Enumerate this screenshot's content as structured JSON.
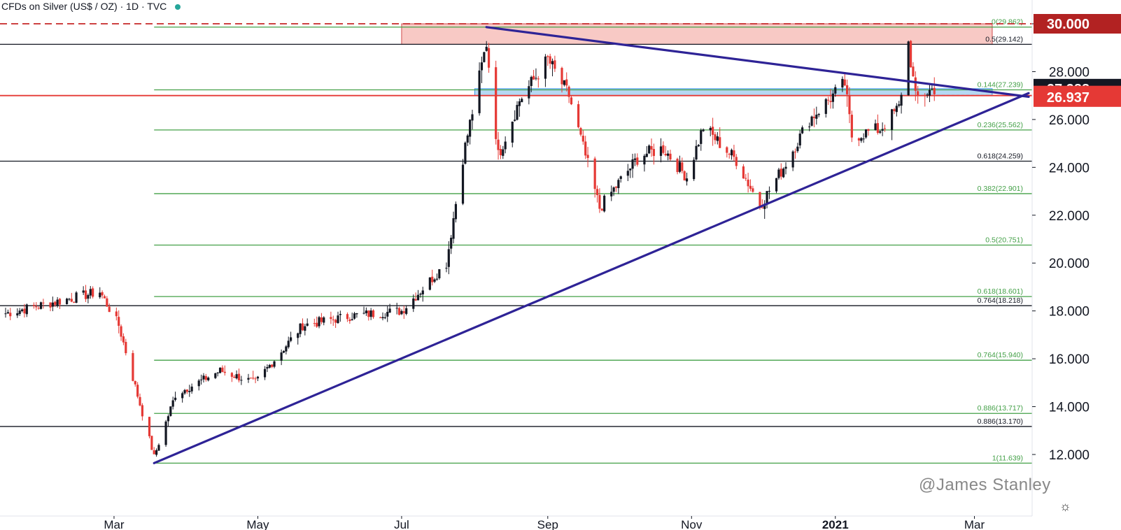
{
  "header": {
    "symbol": "CFDs on Silver (US$ / OZ)",
    "interval": "1D",
    "source": "TVC",
    "separator": "·"
  },
  "watermark": "@James Stanley",
  "chart_data": {
    "type": "candlestick",
    "title": "CFDs on Silver (US$ / OZ) · 1D · TVC",
    "y_axis": {
      "range": [
        11.0,
        31.1
      ],
      "ticks": [
        "12.000",
        "14.000",
        "16.000",
        "18.000",
        "20.000",
        "22.000",
        "24.000",
        "26.000",
        "28.000",
        "30.000"
      ]
    },
    "x_axis": {
      "range": [
        "2020-01-15",
        "2021-03-24"
      ],
      "ticks": [
        {
          "date": "2020-03-01",
          "label": "Mar",
          "bold": false
        },
        {
          "date": "2020-05-01",
          "label": "May",
          "bold": false
        },
        {
          "date": "2020-07-01",
          "label": "Jul",
          "bold": false
        },
        {
          "date": "2020-09-01",
          "label": "Sep",
          "bold": false
        },
        {
          "date": "2020-11-01",
          "label": "Nov",
          "bold": false
        },
        {
          "date": "2021-01-01",
          "label": "2021",
          "bold": true
        },
        {
          "date": "2021-03-01",
          "label": "Mar",
          "bold": false
        }
      ]
    },
    "price_badges": [
      {
        "value": "30.000",
        "color": "#b22222"
      },
      {
        "value": "27.288",
        "color": "#131722"
      },
      {
        "value": "27.000",
        "color": "#e53935"
      },
      {
        "value": "26.937",
        "color": "#e53935"
      }
    ],
    "candle_colors": {
      "up": "#131722",
      "down": "#e53935"
    },
    "key_points": [
      {
        "date": "2020-01-15",
        "close": 17.9
      },
      {
        "date": "2020-02-24",
        "close": 18.8
      },
      {
        "date": "2020-03-03",
        "close": 17.4
      },
      {
        "date": "2020-03-18",
        "close": 11.9
      },
      {
        "date": "2020-03-27",
        "close": 14.5
      },
      {
        "date": "2020-04-15",
        "close": 15.5
      },
      {
        "date": "2020-04-30",
        "close": 15.0
      },
      {
        "date": "2020-05-20",
        "close": 17.4
      },
      {
        "date": "2020-06-10",
        "close": 17.8
      },
      {
        "date": "2020-07-01",
        "close": 18.0
      },
      {
        "date": "2020-07-20",
        "close": 20.0
      },
      {
        "date": "2020-07-27",
        "close": 24.4
      },
      {
        "date": "2020-08-06",
        "close": 29.2
      },
      {
        "date": "2020-08-11",
        "close": 24.5
      },
      {
        "date": "2020-08-20",
        "close": 26.8
      },
      {
        "date": "2020-09-01",
        "close": 28.5
      },
      {
        "date": "2020-09-10",
        "close": 27.0
      },
      {
        "date": "2020-09-23",
        "close": 22.3
      },
      {
        "date": "2020-10-10",
        "close": 24.5
      },
      {
        "date": "2020-10-20",
        "close": 24.8
      },
      {
        "date": "2020-10-30",
        "close": 23.6
      },
      {
        "date": "2020-11-06",
        "close": 25.7
      },
      {
        "date": "2020-11-20",
        "close": 24.3
      },
      {
        "date": "2020-11-30",
        "close": 22.4
      },
      {
        "date": "2020-12-10",
        "close": 24.0
      },
      {
        "date": "2020-12-21",
        "close": 26.0
      },
      {
        "date": "2021-01-05",
        "close": 27.5
      },
      {
        "date": "2021-01-08",
        "close": 25.3
      },
      {
        "date": "2021-01-20",
        "close": 25.6
      },
      {
        "date": "2021-01-28",
        "close": 26.5
      },
      {
        "date": "2021-02-01",
        "close": 29.2
      },
      {
        "date": "2021-02-04",
        "close": 26.9
      },
      {
        "date": "2021-02-12",
        "close": 27.3
      }
    ],
    "fib_green": [
      {
        "price": 29.862,
        "label": "0(29.862)"
      },
      {
        "price": 27.239,
        "label": "0.144(27.239)"
      },
      {
        "price": 25.562,
        "label": "0.236(25.562)"
      },
      {
        "price": 22.901,
        "label": "0.382(22.901)"
      },
      {
        "price": 20.751,
        "label": "0.5(20.751)"
      },
      {
        "price": 18.601,
        "label": "0.618(18.601)"
      },
      {
        "price": 15.94,
        "label": "0.764(15.940)"
      },
      {
        "price": 13.717,
        "label": "0.886(13.717)"
      },
      {
        "price": 11.639,
        "label": "1(11.639)"
      }
    ],
    "fib_black": [
      {
        "price": 29.142,
        "label": "0.5(29.142)"
      },
      {
        "price": 24.259,
        "label": "0.618(24.259)"
      },
      {
        "price": 18.218,
        "label": "0.764(18.218)"
      },
      {
        "price": 13.17,
        "label": "0.886(13.170)"
      }
    ],
    "zones": [
      {
        "kind": "resistance",
        "from_price": 29.142,
        "to_price": 30.0,
        "start": "2020-07-01",
        "color": "#f5b7b1"
      },
      {
        "kind": "support",
        "from_price": 27.0,
        "to_price": 27.288,
        "start": "2020-08-01",
        "color": "#9ccbef"
      }
    ],
    "horizontal_lines": [
      {
        "price": 30.0,
        "style": "dashed",
        "color": "#c62828"
      },
      {
        "price": 27.0,
        "style": "solid",
        "color": "#e53935"
      }
    ],
    "trendlines": [
      {
        "from": {
          "date": "2020-03-18",
          "price": 11.64
        },
        "to": {
          "date": "2021-03-24",
          "price": 27.1
        },
        "color": "#2e2396"
      },
      {
        "from": {
          "date": "2020-08-06",
          "price": 29.86
        },
        "to": {
          "date": "2021-03-24",
          "price": 26.95
        },
        "color": "#2e2396"
      }
    ]
  }
}
